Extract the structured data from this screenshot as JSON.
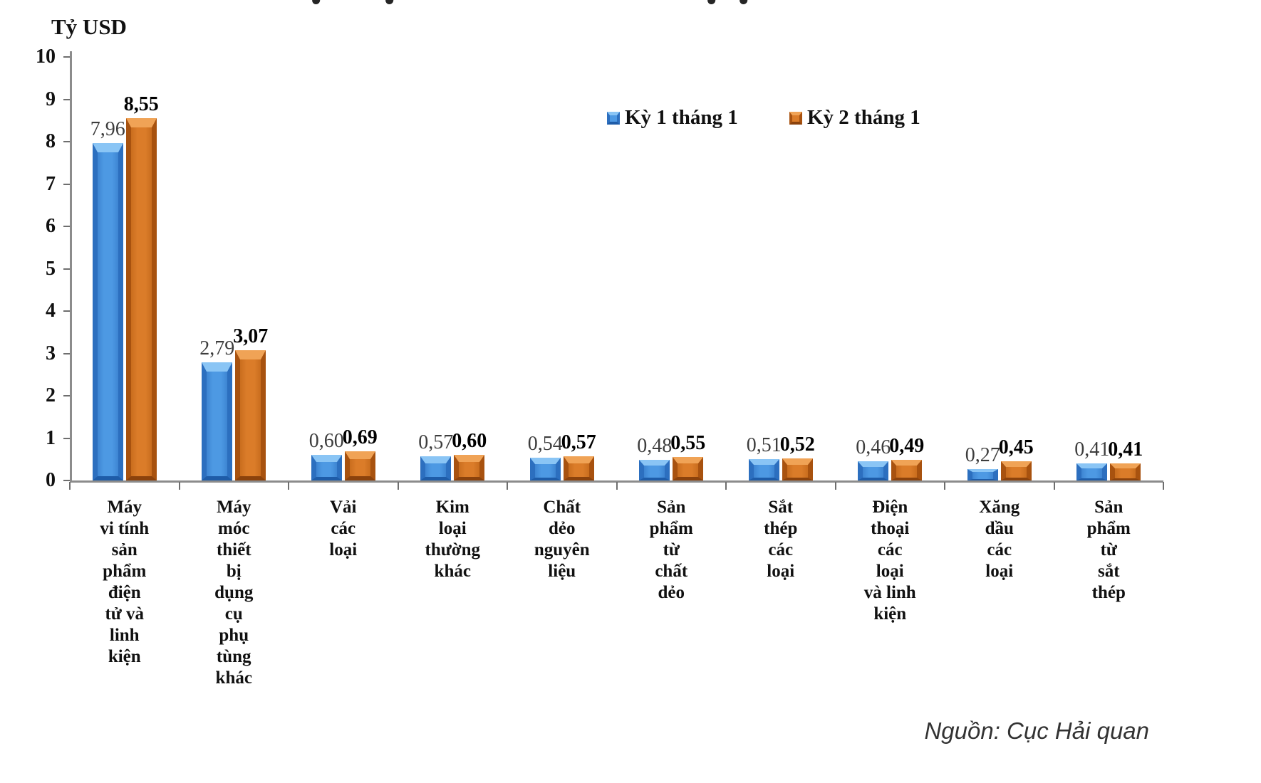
{
  "chart_data": {
    "type": "bar",
    "title": "",
    "ylabel": "Tỷ USD",
    "xlabel": "",
    "ylim": [
      0,
      10
    ],
    "yticks": [
      0,
      1,
      2,
      3,
      4,
      5,
      6,
      7,
      8,
      9,
      10
    ],
    "grid": false,
    "legend_position": "top-inside",
    "source": "Nguồn: Cục Hải quan",
    "categories": [
      "Máy vi tính sản phẩm điện tử và linh kiện",
      "Máy móc thiết bị dụng cụ phụ tùng khác",
      "Vải các loại",
      "Kim loại thường khác",
      "Chất dẻo nguyên liệu",
      "Sản phẩm từ chất dẻo",
      "Sắt thép các loại",
      "Điện thoại các loại và linh kiện",
      "Xăng dầu các loại",
      "Sản phẩm từ sắt thép"
    ],
    "category_label_lines": [
      [
        "Máy",
        "vi tính",
        "sản",
        "phẩm",
        "điện",
        "tử và",
        "linh",
        "kiện"
      ],
      [
        "Máy",
        "móc",
        "thiết",
        "bị",
        "dụng",
        "cụ",
        "phụ",
        "tùng",
        "khác"
      ],
      [
        "Vải",
        "các",
        "loại"
      ],
      [
        "Kim",
        "loại",
        "thường",
        "khác"
      ],
      [
        "Chất",
        "dẻo",
        "nguyên",
        "liệu"
      ],
      [
        "Sản",
        "phẩm",
        "từ",
        "chất",
        "dẻo"
      ],
      [
        "Sắt",
        "thép",
        "các",
        "loại"
      ],
      [
        "Điện",
        "thoại",
        "các",
        "loại",
        "và linh",
        "kiện"
      ],
      [
        "Xăng",
        "dầu",
        "các",
        "loại"
      ],
      [
        "Sản",
        "phẩm",
        "từ",
        "sắt",
        "thép"
      ]
    ],
    "series": [
      {
        "name": "Kỳ 1 tháng 1",
        "color": "#4d99e3",
        "values": [
          7.96,
          2.79,
          0.6,
          0.57,
          0.54,
          0.48,
          0.51,
          0.46,
          0.27,
          0.41
        ],
        "labels": [
          "7,96",
          "2,79",
          "0,60",
          "0,57",
          "0,54",
          "0,48",
          "0,51",
          "0,46",
          "0,27",
          "0,41"
        ],
        "palette": {
          "body": "#4d99e3",
          "body_edge": "#3d85d2",
          "highlight": "#8ac5f5",
          "edge": "#2c6fbf",
          "shadow": "#1e5ca8"
        }
      },
      {
        "name": "Kỳ 2 tháng 1",
        "color": "#db7c29",
        "values": [
          8.55,
          3.07,
          0.69,
          0.6,
          0.57,
          0.55,
          0.52,
          0.49,
          0.45,
          0.41
        ],
        "labels": [
          "8,55",
          "3,07",
          "0,69",
          "0,60",
          "0,57",
          "0,55",
          "0,52",
          "0,49",
          "0,45",
          "0,41"
        ],
        "palette": {
          "body": "#db7c29",
          "body_edge": "#c96d1e",
          "highlight": "#f0a356",
          "edge": "#a8520f",
          "shadow": "#8b420c"
        }
      }
    ]
  }
}
